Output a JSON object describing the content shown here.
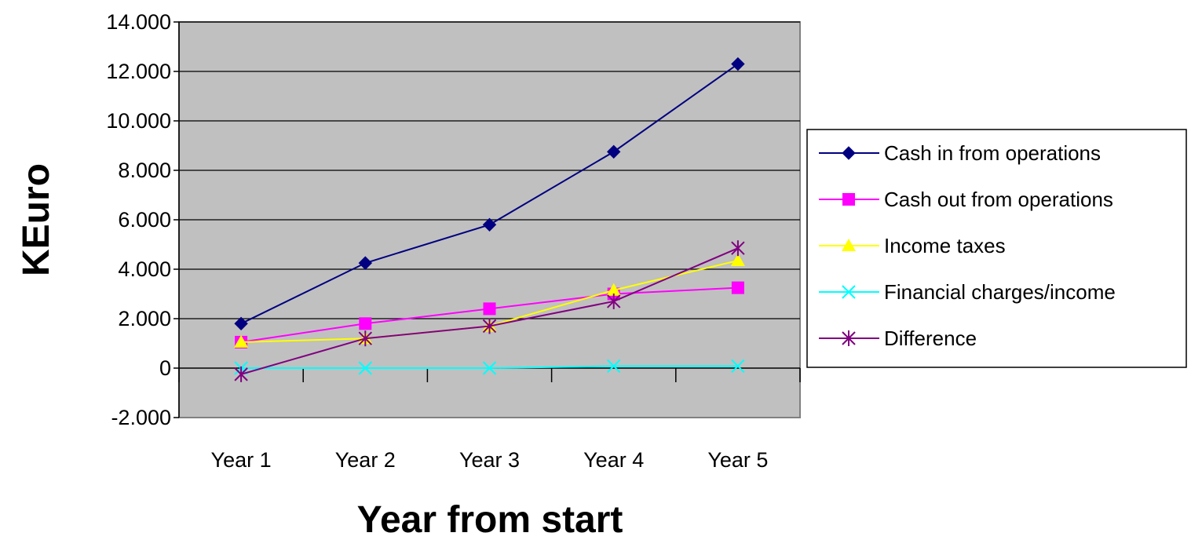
{
  "chart_data": {
    "type": "line",
    "title": "",
    "xlabel": "Year from start",
    "ylabel": "KEuro",
    "categories": [
      "Year 1",
      "Year 2",
      "Year 3",
      "Year 4",
      "Year 5"
    ],
    "ylim": [
      -2000,
      14000
    ],
    "yticks": [
      14000,
      12000,
      10000,
      8000,
      6000,
      4000,
      2000,
      0,
      -2000
    ],
    "ytick_labels": [
      "14.000",
      "12.000",
      "10.000",
      "8.000",
      "6.000",
      "4.000",
      "2.000",
      "0",
      "-2.000"
    ],
    "grid": true,
    "plot_background": "#c0c0c0",
    "legend_position": "right",
    "series": [
      {
        "name": "Cash in from operations",
        "color": "#000080",
        "marker": "diamond",
        "values": [
          1800,
          4250,
          5800,
          8750,
          12300
        ]
      },
      {
        "name": "Cash out from operations",
        "color": "#ff00ff",
        "marker": "square",
        "values": [
          1050,
          1800,
          2400,
          3000,
          3250
        ]
      },
      {
        "name": "Income taxes",
        "color": "#ffff00",
        "marker": "triangle",
        "values": [
          1050,
          1200,
          1700,
          3150,
          4350
        ]
      },
      {
        "name": "Financial charges/income",
        "color": "#00ffff",
        "marker": "x",
        "values": [
          0,
          0,
          0,
          80,
          80
        ]
      },
      {
        "name": "Difference",
        "color": "#800080",
        "marker": "star",
        "values": [
          -250,
          1200,
          1700,
          2700,
          4850
        ]
      }
    ]
  }
}
